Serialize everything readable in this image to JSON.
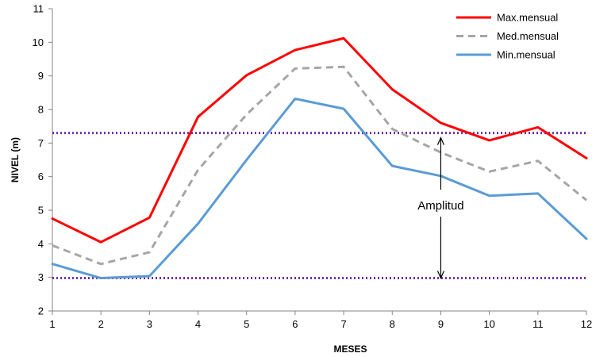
{
  "chart_data": {
    "type": "line",
    "xlabel": "MESES",
    "ylabel": "NIVEL (m)",
    "x": [
      1,
      2,
      3,
      4,
      5,
      6,
      7,
      8,
      9,
      10,
      11,
      12
    ],
    "xlim": [
      1,
      12
    ],
    "ylim": [
      2,
      11
    ],
    "yticks": [
      2,
      3,
      4,
      5,
      6,
      7,
      8,
      9,
      10,
      11
    ],
    "grid": false,
    "legend_position": "top-right",
    "series": [
      {
        "name": "Max.mensual",
        "color": "#ff0000",
        "dash": "solid",
        "values": [
          4.75,
          4.05,
          4.78,
          7.78,
          9.02,
          9.77,
          10.12,
          8.6,
          7.6,
          7.08,
          7.47,
          6.55
        ]
      },
      {
        "name": "Med.mensual",
        "color": "#a6a6a6",
        "dash": "dashed",
        "values": [
          3.95,
          3.4,
          3.75,
          6.2,
          7.85,
          9.22,
          9.27,
          7.42,
          6.72,
          6.15,
          6.47,
          5.3
        ]
      },
      {
        "name": "Min.mensual",
        "color": "#5b9bd5",
        "dash": "solid",
        "values": [
          3.4,
          2.98,
          3.04,
          4.6,
          6.5,
          8.32,
          8.02,
          6.32,
          6.02,
          5.43,
          5.5,
          4.15
        ]
      }
    ],
    "reference_lines": [
      {
        "y": 7.3,
        "color": "#7030a0",
        "style": "dotted"
      },
      {
        "y": 2.98,
        "color": "#7030a0",
        "style": "dotted"
      }
    ],
    "annotations": [
      {
        "text": "Amplitud",
        "x": 9,
        "y_from": 2.98,
        "y_to": 7.3,
        "type": "double-arrow"
      }
    ]
  }
}
